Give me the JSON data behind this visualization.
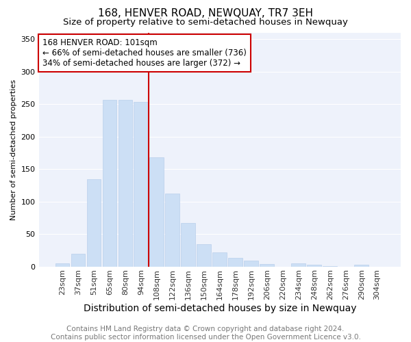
{
  "title": "168, HENVER ROAD, NEWQUAY, TR7 3EH",
  "subtitle": "Size of property relative to semi-detached houses in Newquay",
  "xlabel": "Distribution of semi-detached houses by size in Newquay",
  "ylabel": "Number of semi-detached properties",
  "categories": [
    "23sqm",
    "37sqm",
    "51sqm",
    "65sqm",
    "80sqm",
    "94sqm",
    "108sqm",
    "122sqm",
    "136sqm",
    "150sqm",
    "164sqm",
    "178sqm",
    "192sqm",
    "206sqm",
    "220sqm",
    "234sqm",
    "248sqm",
    "262sqm",
    "276sqm",
    "290sqm",
    "304sqm"
  ],
  "values": [
    5,
    20,
    135,
    257,
    257,
    253,
    168,
    112,
    67,
    35,
    22,
    14,
    10,
    4,
    0,
    5,
    3,
    1,
    0,
    3,
    0
  ],
  "bar_color": "#ccdff5",
  "bar_edge_color": "#b0c8e8",
  "vline_color": "#cc0000",
  "vline_x_index": 6,
  "annotation_line1": "168 HENVER ROAD: 101sqm",
  "annotation_line2": "← 66% of semi-detached houses are smaller (736)",
  "annotation_line3": "34% of semi-detached houses are larger (372) →",
  "annotation_box_facecolor": "#ffffff",
  "annotation_box_edgecolor": "#cc0000",
  "ylim": [
    0,
    360
  ],
  "plot_bg_color": "#eef2fb",
  "fig_bg_color": "#ffffff",
  "grid_color": "#ffffff",
  "footer_text": "Contains HM Land Registry data © Crown copyright and database right 2024.\nContains public sector information licensed under the Open Government Licence v3.0.",
  "title_fontsize": 11,
  "subtitle_fontsize": 9.5,
  "xlabel_fontsize": 10,
  "ylabel_fontsize": 8,
  "tick_fontsize": 8,
  "annotation_fontsize": 8.5,
  "footer_fontsize": 7.5
}
